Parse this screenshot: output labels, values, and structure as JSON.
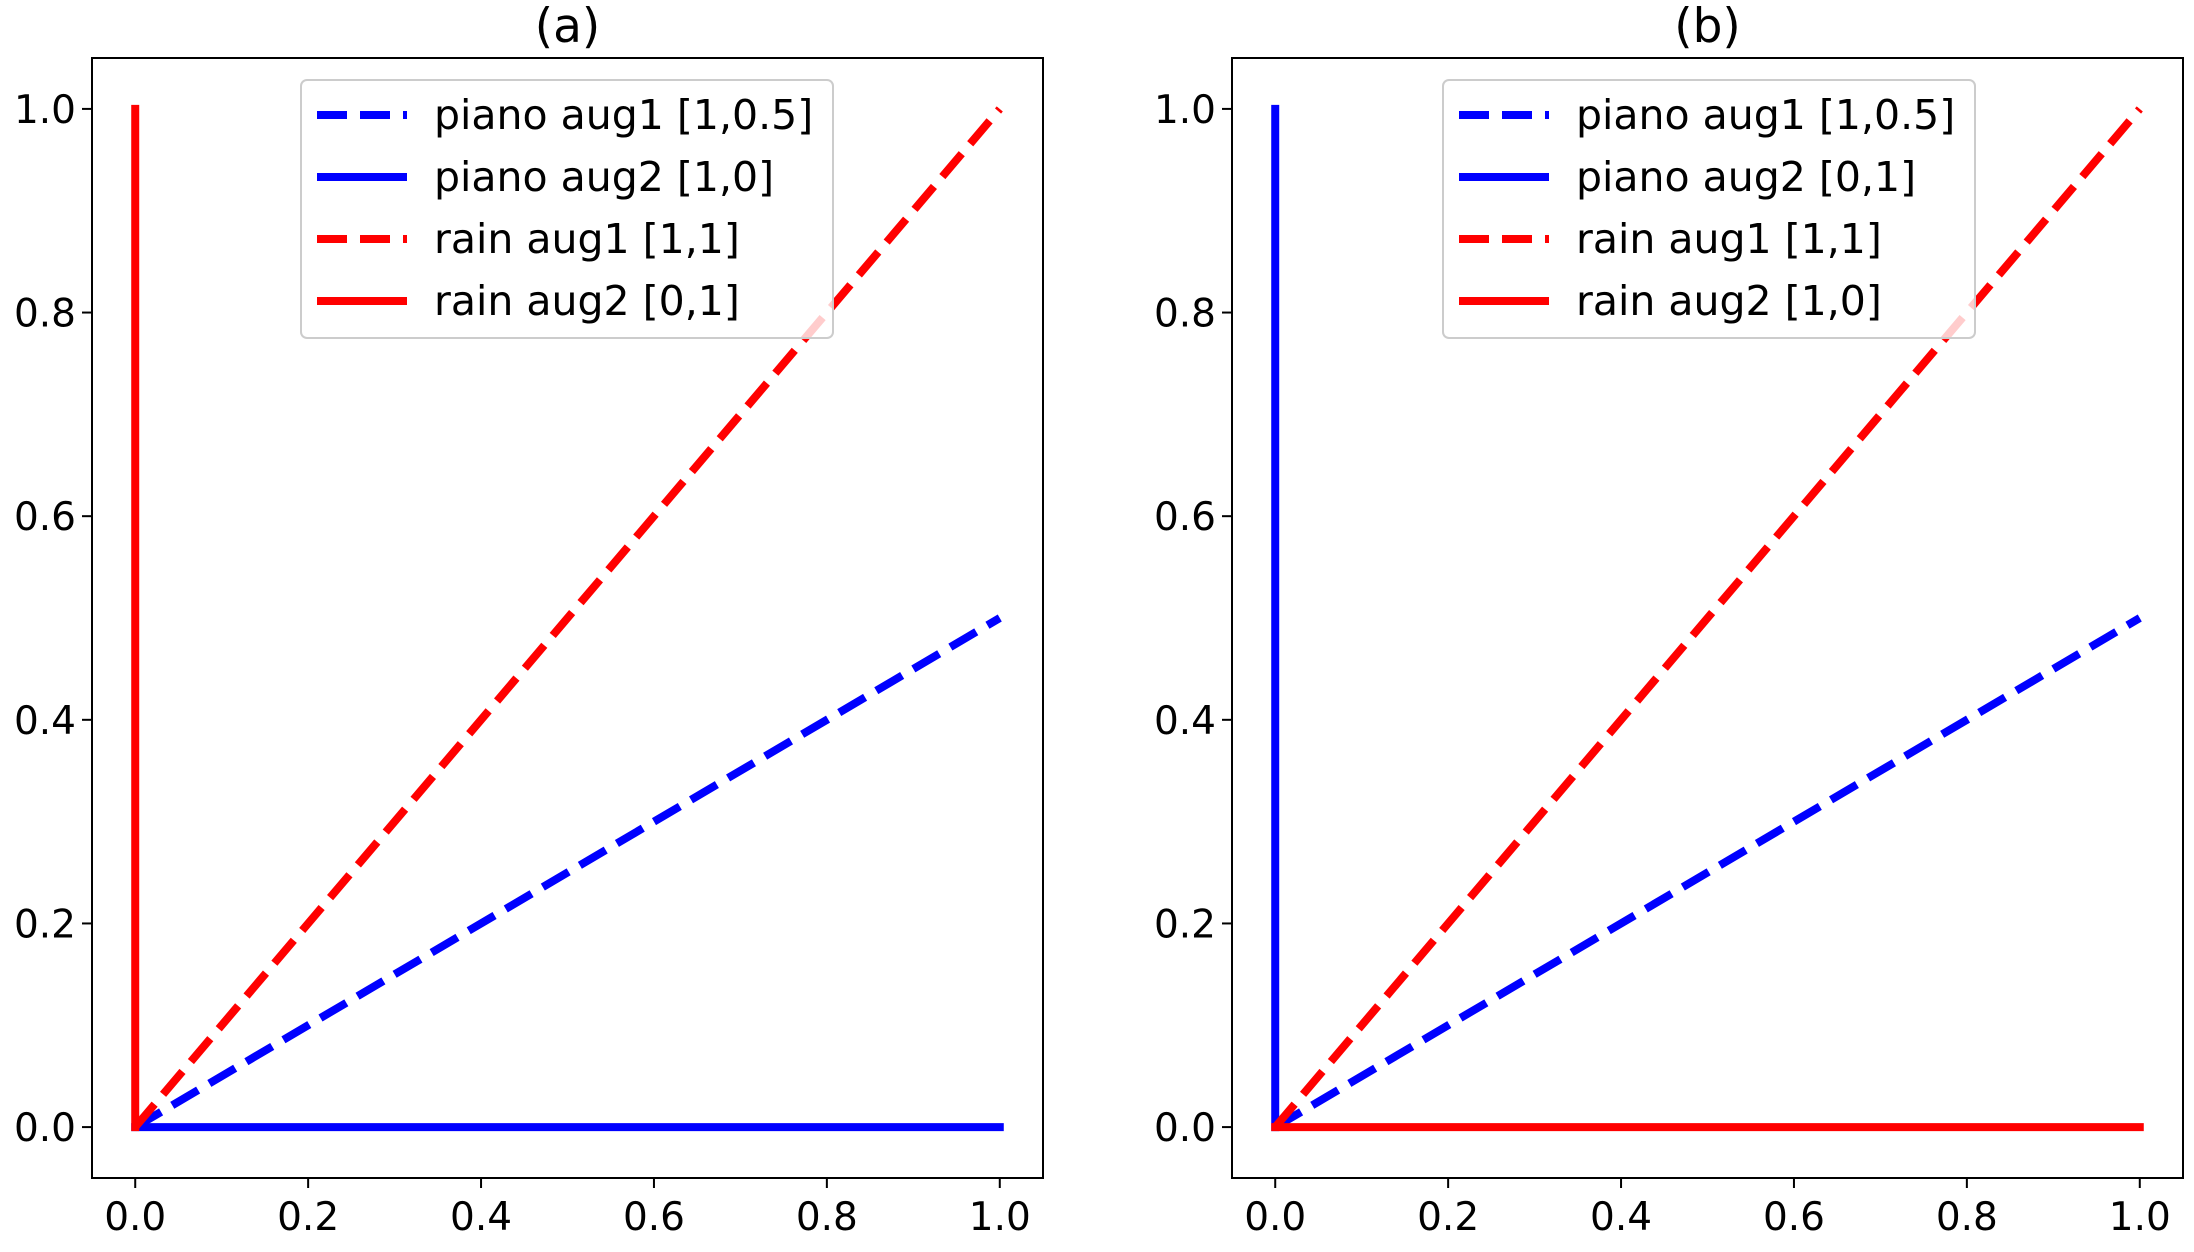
{
  "chart_data": [
    {
      "type": "line",
      "title": "(a)",
      "xlabel": "",
      "ylabel": "",
      "xlim": [
        -0.05,
        1.05
      ],
      "ylim": [
        -0.05,
        1.05
      ],
      "x_ticks": [
        "0.0",
        "0.2",
        "0.4",
        "0.6",
        "0.8",
        "1.0"
      ],
      "y_ticks": [
        "0.0",
        "0.2",
        "0.4",
        "0.6",
        "0.8",
        "1.0"
      ],
      "grid": false,
      "legend_position": "upper center",
      "series": [
        {
          "name": "piano aug1 [1,0.5]",
          "color": "#0000ff",
          "style": "dashed",
          "x": [
            0,
            1
          ],
          "y": [
            0,
            0.5
          ]
        },
        {
          "name": "piano aug2 [1,0]",
          "color": "#0000ff",
          "style": "solid",
          "x": [
            0,
            1
          ],
          "y": [
            0,
            0
          ]
        },
        {
          "name": "rain aug1 [1,1]",
          "color": "#ff0000",
          "style": "dashed",
          "x": [
            0,
            1
          ],
          "y": [
            0,
            1
          ]
        },
        {
          "name": "rain aug2 [0,1]",
          "color": "#ff0000",
          "style": "solid",
          "x": [
            0,
            0
          ],
          "y": [
            0,
            1
          ]
        }
      ]
    },
    {
      "type": "line",
      "title": "(b)",
      "xlabel": "",
      "ylabel": "",
      "xlim": [
        -0.05,
        1.05
      ],
      "ylim": [
        -0.05,
        1.05
      ],
      "x_ticks": [
        "0.0",
        "0.2",
        "0.4",
        "0.6",
        "0.8",
        "1.0"
      ],
      "y_ticks": [
        "0.0",
        "0.2",
        "0.4",
        "0.6",
        "0.8",
        "1.0"
      ],
      "grid": false,
      "legend_position": "upper center",
      "series": [
        {
          "name": "piano aug1 [1,0.5]",
          "color": "#0000ff",
          "style": "dashed",
          "x": [
            0,
            1
          ],
          "y": [
            0,
            0.5
          ]
        },
        {
          "name": "piano aug2 [0,1]",
          "color": "#0000ff",
          "style": "solid",
          "x": [
            0,
            0
          ],
          "y": [
            0,
            1
          ]
        },
        {
          "name": "rain aug1 [1,1]",
          "color": "#ff0000",
          "style": "dashed",
          "x": [
            0,
            1
          ],
          "y": [
            0,
            1
          ]
        },
        {
          "name": "rain aug2 [1,0]",
          "color": "#ff0000",
          "style": "solid",
          "x": [
            0,
            1
          ],
          "y": [
            0,
            0
          ]
        }
      ]
    }
  ]
}
